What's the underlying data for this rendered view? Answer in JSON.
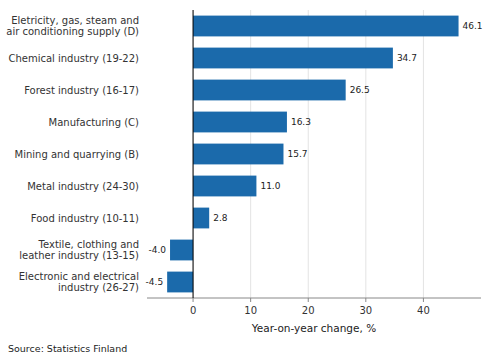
{
  "chart_data": {
    "type": "bar",
    "orientation": "horizontal",
    "categories": [
      "Electronic and electrical\nindustry (26-27)",
      "Textile, clothing and\nleather industry (13-15)",
      "Food industry (10-11)",
      "Metal industry (24-30)",
      "Mining and quarrying (B)",
      "Manufacturing (C)",
      "Forest industry (16-17)",
      "Chemical industry (19-22)",
      "Eletricity, gas, steam and\nair conditioning supply (D)"
    ],
    "values": [
      -4.5,
      -4.0,
      2.8,
      11.0,
      15.7,
      16.3,
      26.5,
      34.7,
      46.1
    ],
    "value_labels": [
      "-4.5",
      "-4.0",
      "2.8",
      "11.0",
      "15.7",
      "16.3",
      "26.5",
      "34.7",
      "46.1"
    ],
    "data_labels": true,
    "color": "#1b6aab",
    "xlabel": "Year-on-year change, %",
    "annotations": [
      "Source: Statistics Finland"
    ],
    "xlim": [
      -8,
      50
    ],
    "xticks": [
      0,
      10,
      20,
      30,
      40
    ],
    "grid": true
  }
}
